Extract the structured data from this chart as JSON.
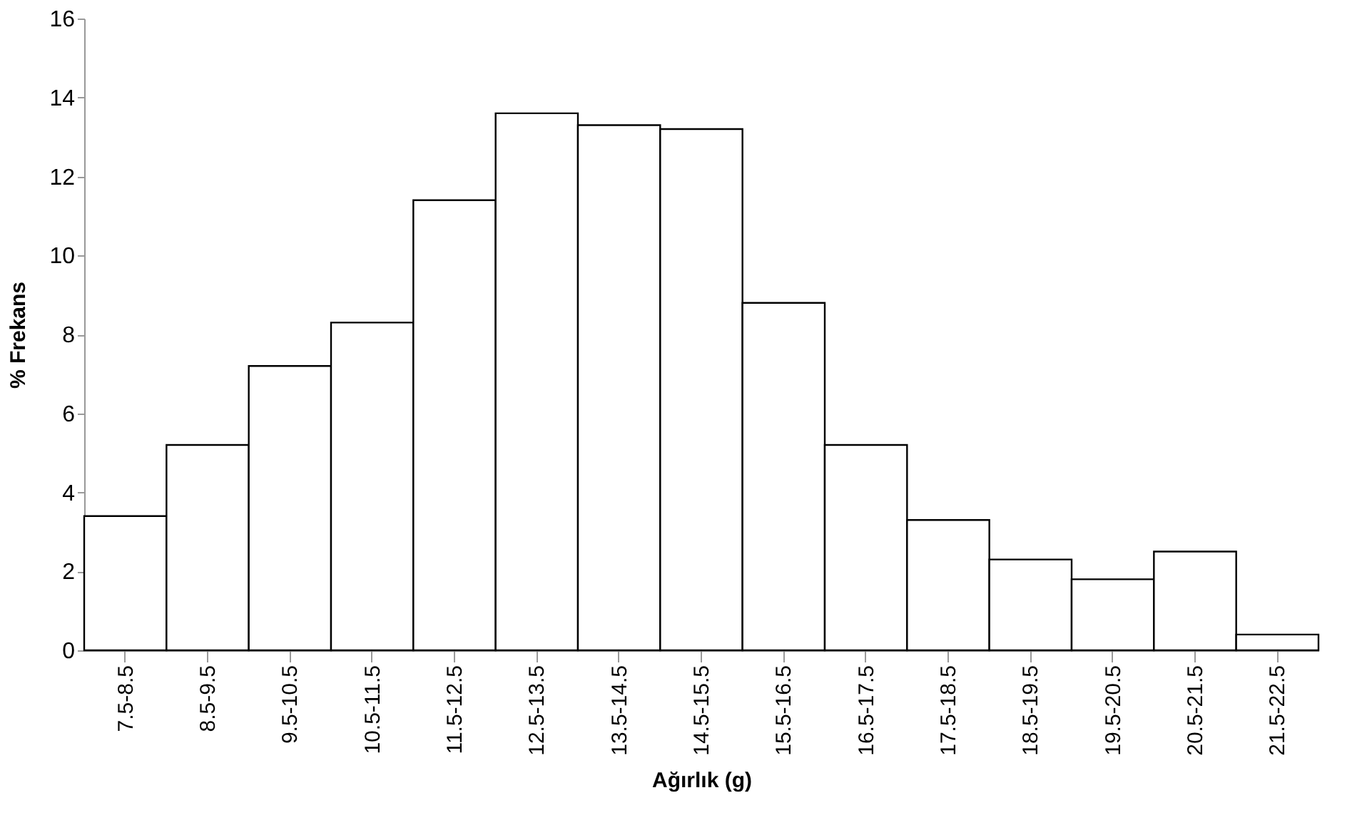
{
  "chart_data": {
    "type": "bar",
    "xlabel": "Ağırlık (g)",
    "ylabel": "% Frekans",
    "categories": [
      "7.5-8.5",
      "8.5-9.5",
      "9.5-10.5",
      "10.5-11.5",
      "11.5-12.5",
      "12.5-13.5",
      "13.5-14.5",
      "14.5-15.5",
      "15.5-16.5",
      "16.5-17.5",
      "17.5-18.5",
      "18.5-19.5",
      "19.5-20.5",
      "20.5-21.5",
      "21.5-22.5"
    ],
    "values": [
      3.4,
      5.2,
      7.2,
      8.3,
      11.4,
      13.6,
      13.3,
      13.2,
      8.8,
      5.2,
      3.3,
      2.3,
      1.8,
      2.5,
      0.4
    ],
    "color": "#ffffff",
    "ylim": [
      0,
      16
    ],
    "yticks": [
      0,
      2,
      4,
      6,
      8,
      10,
      12,
      14,
      16
    ],
    "grid": false
  }
}
